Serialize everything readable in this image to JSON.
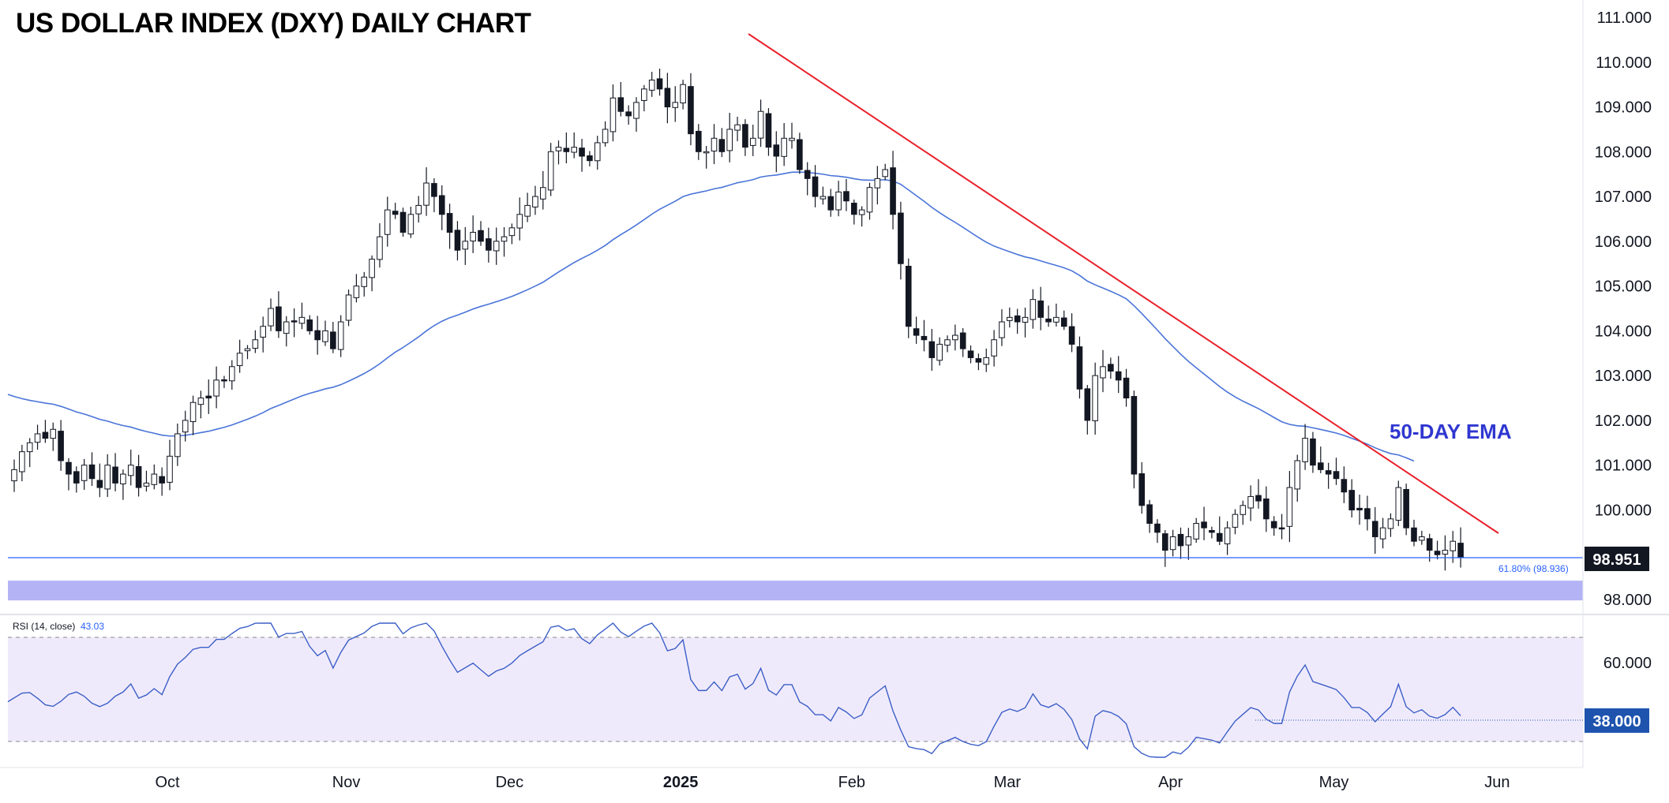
{
  "title": "US DOLLAR INDEX (DXY) DAILY CHART",
  "colors": {
    "up_fill": "#ffffff",
    "down_fill": "#131722",
    "wick": "#131722",
    "ema": "#4a74d8",
    "trendline": "#e8202a",
    "fib_line": "#2962ff",
    "support_zone": "#b3b3f5",
    "rsi_band": "#efeafb",
    "rsi_line": "#3c5fc7",
    "annotation_text": "#2f37d0",
    "price_tag_bg": "#131722",
    "rsi_tag_bg": "#1e54ae"
  },
  "price_axis": {
    "ticks": [
      "111.000",
      "110.000",
      "109.000",
      "108.000",
      "107.000",
      "106.000",
      "105.000",
      "104.000",
      "103.000",
      "102.000",
      "101.000",
      "100.000",
      "98.000"
    ],
    "current_tag": "98.951"
  },
  "rsi_axis": {
    "ticks": [
      "60.000"
    ],
    "current_tag": "38.000"
  },
  "rsi_header": {
    "label": "RSI (14, close)",
    "value": "43.03"
  },
  "x_axis": {
    "ticks": [
      "Oct",
      "Nov",
      "Dec",
      "2025",
      "Feb",
      "Mar",
      "Apr",
      "May",
      "Jun"
    ]
  },
  "annotations": {
    "ema_label": "50-DAY EMA",
    "fib_label": "61.80% (98.936)"
  },
  "chart_data": {
    "type": "candlestick",
    "title": "US DOLLAR INDEX (DXY) DAILY CHART",
    "y_range": [
      97.9,
      111.4
    ],
    "month_ticks": [
      {
        "label": "Oct",
        "index": 20
      },
      {
        "label": "Nov",
        "index": 43
      },
      {
        "label": "Dec",
        "index": 64
      },
      {
        "label": "2025",
        "index": 86
      },
      {
        "label": "Feb",
        "index": 108
      },
      {
        "label": "Mar",
        "index": 128
      },
      {
        "label": "Apr",
        "index": 149
      },
      {
        "label": "May",
        "index": 170
      },
      {
        "label": "Jun",
        "index": 191
      }
    ],
    "close": [
      100.9,
      101.3,
      101.5,
      101.7,
      101.6,
      101.8,
      101.1,
      100.8,
      100.6,
      101.0,
      100.7,
      100.5,
      101.0,
      100.6,
      100.8,
      101.0,
      100.5,
      100.6,
      100.8,
      100.6,
      101.2,
      101.7,
      102.0,
      102.4,
      102.5,
      102.5,
      102.9,
      102.9,
      103.2,
      103.5,
      103.6,
      103.8,
      104.1,
      104.5,
      104.0,
      104.2,
      104.2,
      104.3,
      104.0,
      103.8,
      104.0,
      103.6,
      104.2,
      104.8,
      105.0,
      105.2,
      105.6,
      106.1,
      106.7,
      106.6,
      106.2,
      106.6,
      106.8,
      107.3,
      107.0,
      106.6,
      106.2,
      105.8,
      106.0,
      106.2,
      106.0,
      105.8,
      106.0,
      106.1,
      106.3,
      106.6,
      106.8,
      107.0,
      107.2,
      108.0,
      108.1,
      108.0,
      108.1,
      107.9,
      107.8,
      108.2,
      108.5,
      109.2,
      108.9,
      108.8,
      109.1,
      109.4,
      109.6,
      109.4,
      109.0,
      109.1,
      109.5,
      108.4,
      108.0,
      108.0,
      108.3,
      108.0,
      108.5,
      108.6,
      108.1,
      108.3,
      108.9,
      108.1,
      107.9,
      108.3,
      108.3,
      107.6,
      107.4,
      107.0,
      107.0,
      106.7,
      107.1,
      106.9,
      106.6,
      106.7,
      107.2,
      107.4,
      107.6,
      106.6,
      105.5,
      104.1,
      103.9,
      103.8,
      103.4,
      103.7,
      103.8,
      103.9,
      103.6,
      103.4,
      103.3,
      103.4,
      103.8,
      104.2,
      104.3,
      104.2,
      104.3,
      104.7,
      104.3,
      104.2,
      104.3,
      104.1,
      103.7,
      102.7,
      102.0,
      103.0,
      103.2,
      103.1,
      102.9,
      102.5,
      100.8,
      100.1,
      99.7,
      99.5,
      99.1,
      99.4,
      99.2,
      99.4,
      99.7,
      99.6,
      99.5,
      99.3,
      99.6,
      99.9,
      100.1,
      100.3,
      100.2,
      99.8,
      99.6,
      99.6,
      100.5,
      101.1,
      101.6,
      101.0,
      100.9,
      100.8,
      100.7,
      100.4,
      100.0,
      100.0,
      99.8,
      99.4,
      99.6,
      99.8,
      100.5,
      99.6,
      99.3,
      99.4,
      99.1,
      99.0,
      99.1,
      99.3,
      98.951
    ]
  }
}
